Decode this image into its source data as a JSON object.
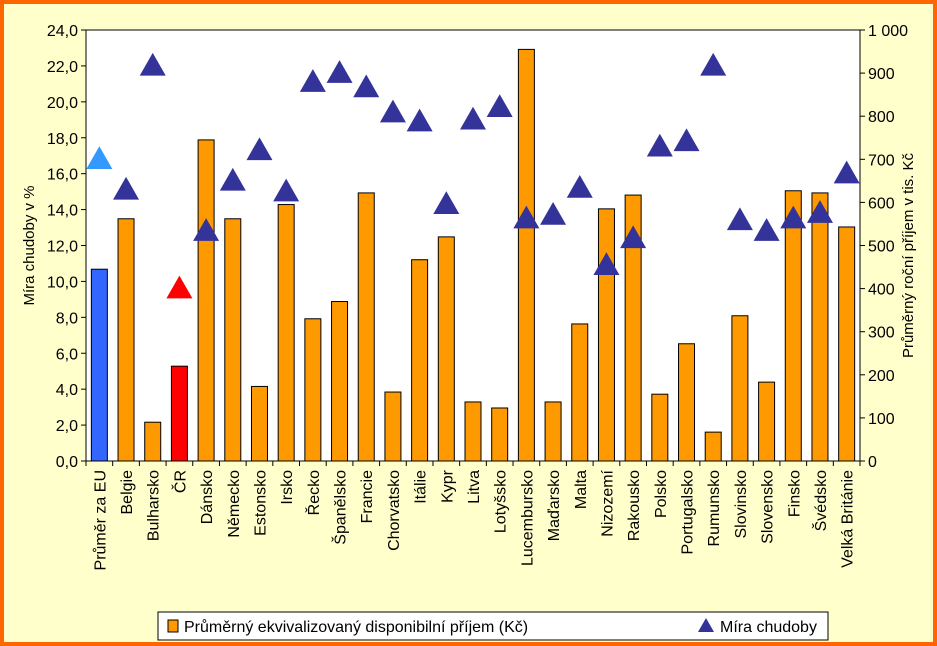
{
  "chart_data": {
    "type": "bar",
    "categories": [
      "Průměr za EU",
      "Belgie",
      "Bulharsko",
      "ČR",
      "Dánsko",
      "Německo",
      "Estonsko",
      "Irsko",
      "Řecko",
      "Španělsko",
      "Francie",
      "Chorvatsko",
      "Itálie",
      "Kypr",
      "Litva",
      "Lotyšsko",
      "Lucembursko",
      "Maďarsko",
      "Malta",
      "Nizozemí",
      "Rakousko",
      "Polsko",
      "Portugalsko",
      "Rumunsko",
      "Slovinsko",
      "Slovensko",
      "Finsko",
      "Švédsko",
      "Velká Británie"
    ],
    "series": [
      {
        "name": "Průměrný ekvivalizovaný disponibilní příjem (Kč)",
        "type": "bar",
        "axis": "right",
        "color": "#FF9900",
        "values": [
          445,
          562,
          90,
          220,
          745,
          562,
          173,
          595,
          330,
          370,
          622,
          160,
          467,
          520,
          137,
          123,
          955,
          137,
          318,
          585,
          617,
          155,
          272,
          67,
          337,
          183,
          627,
          622,
          543
        ],
        "highlight_colors": {
          "0": "#3366FF",
          "3": "#FF0000"
        }
      },
      {
        "name": "Míra chudoby",
        "type": "scatter",
        "axis": "left",
        "marker": "triangle",
        "color": "#333399",
        "values": [
          16.8,
          15.1,
          22.0,
          9.6,
          12.8,
          15.6,
          17.3,
          15.0,
          21.1,
          21.6,
          20.8,
          19.4,
          18.9,
          14.3,
          19.0,
          19.7,
          13.5,
          13.7,
          15.2,
          10.9,
          12.4,
          17.5,
          17.8,
          22.0,
          13.4,
          12.8,
          13.5,
          13.8,
          16.0
        ],
        "highlight_colors": {
          "0": "#3399FF",
          "3": "#FF0000"
        }
      }
    ],
    "ylabel_left": "Míra chudoby v %",
    "ylabel_right": "Průměrný roční příjem v tis. Kč",
    "ylim_left": [
      0,
      24
    ],
    "ylim_right": [
      0,
      1000
    ],
    "left_ticks": [
      "0,0",
      "2,0",
      "4,0",
      "6,0",
      "8,0",
      "10,0",
      "12,0",
      "14,0",
      "16,0",
      "18,0",
      "20,0",
      "22,0",
      "24,0"
    ],
    "right_ticks": [
      "0",
      "100",
      "200",
      "300",
      "400",
      "500",
      "600",
      "700",
      "800",
      "900",
      "1 000"
    ],
    "grid": false,
    "legend_position": "bottom"
  },
  "colors": {
    "background": "#FFFFCC",
    "frame": "#FF6600",
    "plot_area": "#FFFFFF",
    "bar": "#FF9900",
    "triangle": "#333399"
  }
}
